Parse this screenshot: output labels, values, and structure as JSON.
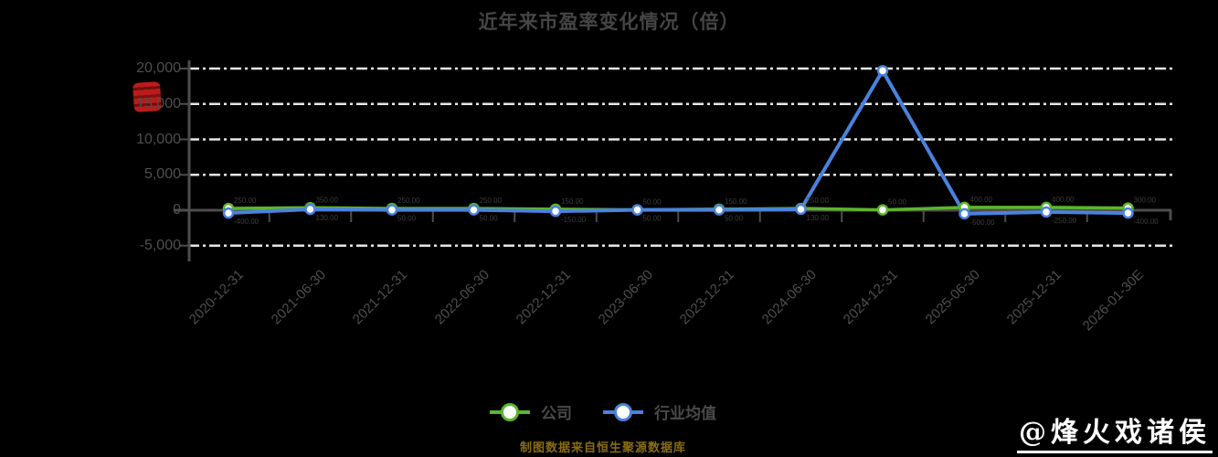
{
  "title": "近年来市盈率变化情况（倍）",
  "watermark": "@烽火戏诸侯",
  "footer_note": "制图数据来自恒生聚源数据库",
  "colors": {
    "background": "#000000",
    "company_series": "#5cb62c",
    "industry_series": "#4a82dd",
    "axis": "#4d4d4d",
    "gridline": "#e6e6e6",
    "text_gray": "#4f4f4f",
    "footer_gold": "#8a6d12",
    "seal_red": "#c21d1d",
    "watermark_white": "#ffffff"
  },
  "icons": {
    "red_seal": "red-seal-stamp"
  },
  "legend": {
    "items": [
      {
        "label": "公司",
        "color": "#5cb62c"
      },
      {
        "label": "行业均值",
        "color": "#4a82dd"
      }
    ]
  },
  "chart_data": {
    "type": "line",
    "title": "近年来市盈率变化情况（倍）",
    "categories": [
      "2020-12-31",
      "2021-06-30",
      "2021-12-31",
      "2022-06-30",
      "2022-12-31",
      "2023-06-30",
      "2023-12-31",
      "2024-06-30",
      "2024-12-31",
      "2025-06-30",
      "2025-12-31",
      "2026-01-30E"
    ],
    "series": [
      {
        "name": "公司",
        "color": "#5cb62c",
        "values": [
          250,
          350,
          250,
          250,
          150,
          50,
          150,
          250,
          50,
          400,
          400,
          300
        ]
      },
      {
        "name": "行业均值",
        "color": "#4a82dd",
        "values": [
          -400,
          130,
          50,
          50,
          -150,
          50,
          50,
          130,
          19700,
          -500,
          -250,
          -400
        ]
      }
    ],
    "xlabel": "",
    "ylabel": "",
    "ylim": [
      -5000,
      20000
    ],
    "yticks": [
      20000,
      15000,
      10000,
      5000,
      0,
      -5000
    ],
    "grid": "horizontal-dashed",
    "legend_position": "bottom",
    "marker": "circle-white-fill"
  }
}
